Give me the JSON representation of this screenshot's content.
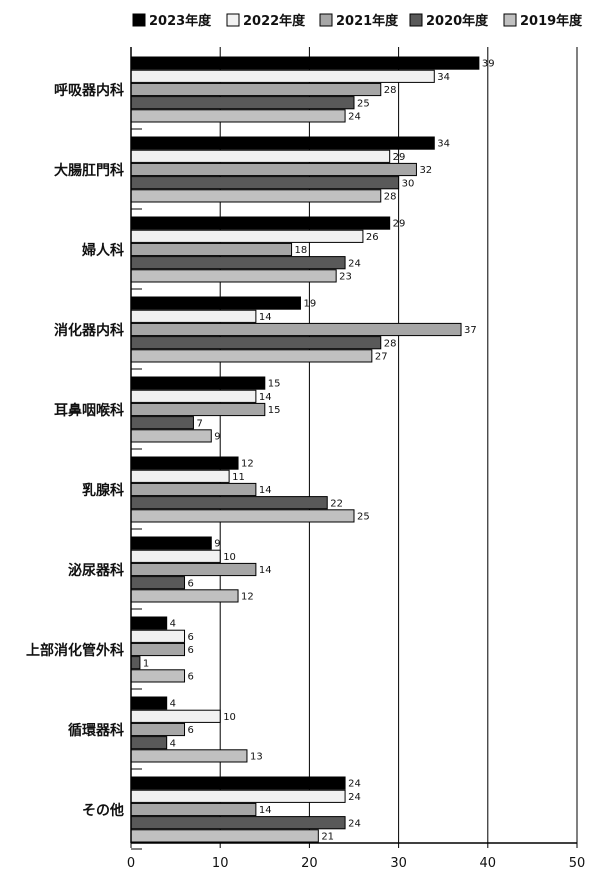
{
  "chart_data": {
    "type": "bar",
    "orientation": "horizontal",
    "categories": [
      "呼吸器内科",
      "大腸肛門科",
      "婦人科",
      "消化器内科",
      "耳鼻咽喉科",
      "乳腺科",
      "泌尿器科",
      "上部消化管外科",
      "循環器科",
      "その他"
    ],
    "series": [
      {
        "name": "2023年度",
        "color": "#000000",
        "values": [
          39,
          34,
          29,
          19,
          15,
          12,
          9,
          4,
          4,
          24
        ]
      },
      {
        "name": "2022年度",
        "color": "#f2f2f2",
        "values": [
          34,
          29,
          26,
          14,
          14,
          11,
          10,
          6,
          10,
          24
        ]
      },
      {
        "name": "2021年度",
        "color": "#a6a6a6",
        "values": [
          28,
          32,
          18,
          37,
          15,
          14,
          14,
          6,
          6,
          14
        ]
      },
      {
        "name": "2020年度",
        "color": "#595959",
        "values": [
          25,
          30,
          24,
          28,
          7,
          22,
          6,
          1,
          4,
          24
        ]
      },
      {
        "name": "2019年度",
        "color": "#c0c0c0",
        "values": [
          24,
          28,
          23,
          27,
          9,
          25,
          12,
          6,
          13,
          21
        ]
      }
    ],
    "xlim": [
      0,
      50
    ],
    "xticks": [
      0,
      10,
      20,
      30,
      40,
      50
    ],
    "grid": "vertical",
    "legend": "top",
    "data_labels": true
  }
}
